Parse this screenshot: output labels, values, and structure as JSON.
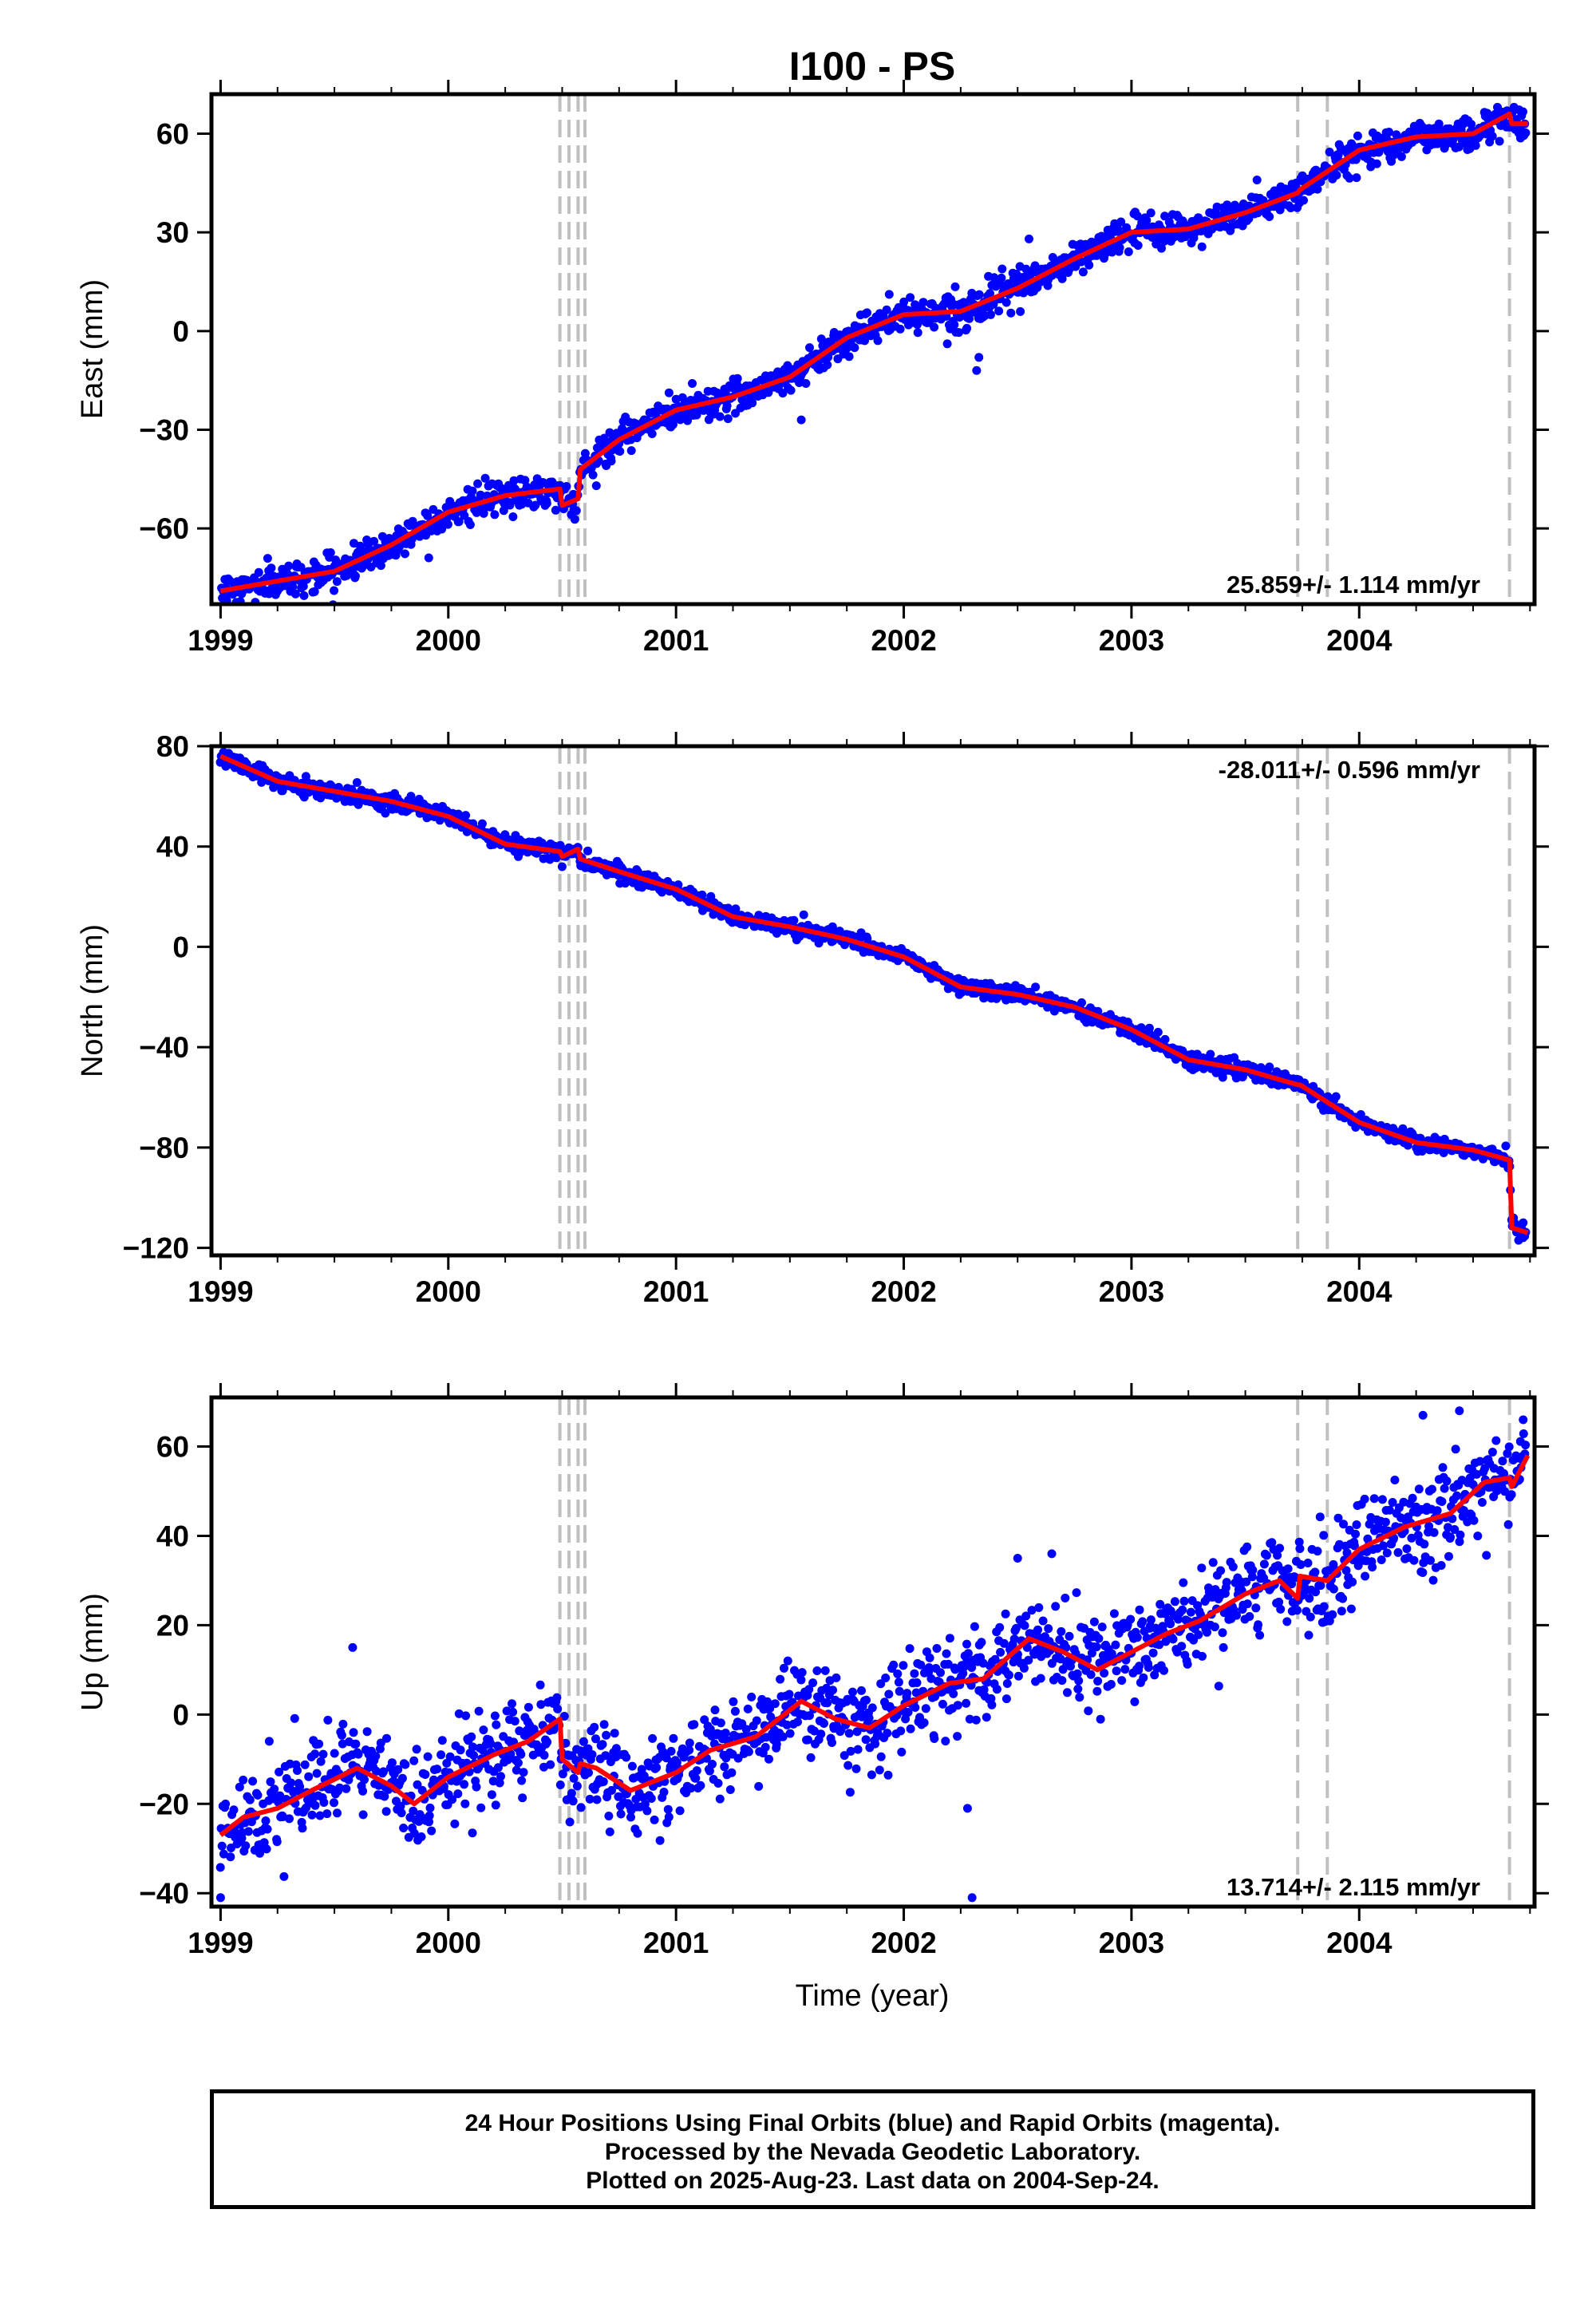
{
  "title": "I100 - PS",
  "xlabel": "Time (year)",
  "footer": {
    "line1": "24 Hour Positions Using Final Orbits (blue) and Rapid Orbits (magenta).",
    "line2": "Processed by the Nevada Geodetic Laboratory.",
    "line3": "Plotted on 2025-Aug-23. Last data on 2004-Sep-24."
  },
  "colors": {
    "data_points": "#0000ff",
    "model_fit": "#ff0000",
    "event_lines": "#c0c0c0",
    "frame": "#000000"
  },
  "chart_data": [
    {
      "type": "scatter",
      "component": "east",
      "ylabel": "East (mm)",
      "xlim": [
        1998.96,
        2004.77
      ],
      "ylim": [
        -83,
        72
      ],
      "x_ticks": [
        1999,
        2000,
        2001,
        2002,
        2003,
        2004
      ],
      "y_ticks": [
        -60,
        -30,
        0,
        30,
        60
      ],
      "event_lines": [
        2000.49,
        2000.53,
        2000.57,
        2000.6,
        2003.73,
        2003.86,
        2004.66
      ],
      "rate_label": "25.859+/- 1.114 mm/yr",
      "rate_position": "bottom-right",
      "model_x": [
        1999.0,
        1999.25,
        1999.5,
        1999.75,
        2000.0,
        2000.25,
        2000.49,
        2000.5,
        2000.57,
        2000.58,
        2000.75,
        2001.0,
        2001.25,
        2001.5,
        2001.75,
        2002.0,
        2002.25,
        2002.5,
        2002.75,
        2003.0,
        2003.25,
        2003.5,
        2003.73,
        2003.74,
        2004.0,
        2004.25,
        2004.5,
        2004.66,
        2004.67,
        2004.74
      ],
      "model_y": [
        -79,
        -76,
        -73,
        -65,
        -55,
        -50,
        -48,
        -53,
        -51,
        -42,
        -33,
        -24,
        -20,
        -14,
        -2,
        5,
        6,
        13,
        22,
        30,
        31,
        36,
        42,
        43,
        55,
        59,
        60,
        66,
        63,
        63
      ],
      "series": [
        {
          "name": "Final Orbits",
          "x_start": 1999.0,
          "x_end": 2004.73,
          "n": 1500,
          "scatter_mm": 2.5
        }
      ],
      "outliers": [
        {
          "x": 2002.32,
          "y": -12
        },
        {
          "x": 2002.33,
          "y": -8
        },
        {
          "x": 2002.55,
          "y": 28
        },
        {
          "x": 2000.65,
          "y": -47
        },
        {
          "x": 2001.55,
          "y": -27
        }
      ]
    },
    {
      "type": "scatter",
      "component": "north",
      "ylabel": "North (mm)",
      "xlim": [
        1998.96,
        2004.77
      ],
      "ylim": [
        -123,
        80
      ],
      "x_ticks": [
        1999,
        2000,
        2001,
        2002,
        2003,
        2004
      ],
      "y_ticks": [
        -120,
        -80,
        -40,
        0,
        40,
        80
      ],
      "event_lines": [
        2000.49,
        2000.53,
        2000.57,
        2000.6,
        2003.73,
        2003.86,
        2004.66
      ],
      "rate_label": "-28.011+/- 0.596 mm/yr",
      "rate_position": "top-right",
      "model_x": [
        1999.0,
        1999.25,
        1999.5,
        1999.75,
        2000.0,
        2000.25,
        2000.49,
        2000.5,
        2000.57,
        2000.58,
        2000.75,
        2001.0,
        2001.25,
        2001.5,
        2001.75,
        2002.0,
        2002.25,
        2002.5,
        2002.75,
        2003.0,
        2003.25,
        2003.5,
        2003.73,
        2003.74,
        2004.0,
        2004.25,
        2004.5,
        2004.66,
        2004.67,
        2004.74
      ],
      "model_y": [
        76,
        66,
        62,
        58,
        52,
        41,
        38,
        36,
        39,
        35,
        30,
        23,
        12,
        8,
        3,
        -4,
        -16,
        -19,
        -24,
        -33,
        -45,
        -49,
        -55,
        -55,
        -70,
        -78,
        -81,
        -85,
        -112,
        -114
      ],
      "series": [
        {
          "name": "Final Orbits",
          "x_start": 1999.0,
          "x_end": 2004.73,
          "n": 1500,
          "scatter_mm": 1.6
        }
      ],
      "outliers": [
        {
          "x": 2004.7,
          "y": -117
        },
        {
          "x": 2004.72,
          "y": -110
        }
      ]
    },
    {
      "type": "scatter",
      "component": "up",
      "ylabel": "Up (mm)",
      "xlim": [
        1998.96,
        2004.77
      ],
      "ylim": [
        -43,
        71
      ],
      "x_ticks": [
        1999,
        2000,
        2001,
        2002,
        2003,
        2004
      ],
      "y_ticks": [
        -40,
        -20,
        0,
        20,
        40,
        60
      ],
      "event_lines": [
        2000.49,
        2000.53,
        2000.57,
        2000.6,
        2003.73,
        2003.86,
        2004.66
      ],
      "rate_label": "13.714+/- 2.115 mm/yr",
      "rate_position": "bottom-right",
      "model_x": [
        1999.0,
        1999.1,
        1999.25,
        1999.4,
        1999.6,
        1999.75,
        1999.85,
        2000.0,
        2000.2,
        2000.35,
        2000.49,
        2000.5,
        2000.57,
        2000.58,
        2000.65,
        2000.8,
        2001.0,
        2001.15,
        2001.35,
        2001.55,
        2001.7,
        2001.85,
        2002.0,
        2002.2,
        2002.35,
        2002.55,
        2002.7,
        2002.85,
        2003.0,
        2003.15,
        2003.3,
        2003.5,
        2003.65,
        2003.73,
        2003.74,
        2003.86,
        2004.0,
        2004.2,
        2004.4,
        2004.55,
        2004.66,
        2004.67,
        2004.74
      ],
      "model_y": [
        -27,
        -23,
        -21,
        -17,
        -12,
        -16,
        -20,
        -14,
        -9,
        -6,
        -1,
        -10,
        -13,
        -11,
        -12,
        -17,
        -13,
        -8,
        -5,
        3,
        -1,
        -3,
        2,
        7,
        8,
        17,
        14,
        10,
        14,
        18,
        21,
        27,
        30,
        26,
        31,
        30,
        37,
        42,
        45,
        52,
        53,
        51,
        58
      ],
      "series": [
        {
          "name": "Final Orbits",
          "x_start": 1999.0,
          "x_end": 2004.73,
          "n": 1500,
          "scatter_mm": 5.0
        }
      ],
      "outliers": [
        {
          "x": 1999.0,
          "y": -41
        },
        {
          "x": 2002.3,
          "y": -41
        },
        {
          "x": 1999.58,
          "y": 15
        },
        {
          "x": 2002.28,
          "y": -21
        },
        {
          "x": 2002.5,
          "y": 35
        },
        {
          "x": 2002.65,
          "y": 36
        },
        {
          "x": 2004.28,
          "y": 67
        },
        {
          "x": 2004.44,
          "y": 68
        },
        {
          "x": 2004.72,
          "y": 66
        }
      ]
    }
  ]
}
